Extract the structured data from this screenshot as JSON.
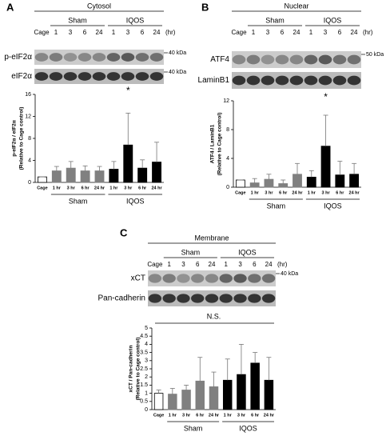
{
  "chart_data": [
    {
      "type": "bar",
      "panel": "A",
      "title": "Cytosol",
      "groups": [
        "Sham",
        "IQOS"
      ],
      "lanes": [
        "Cage",
        "1",
        "3",
        "6",
        "24",
        "1",
        "3",
        "6",
        "24"
      ],
      "lane_unit": "(hr)",
      "blot_rows": [
        {
          "label": "p-eIF2α",
          "marker": "40 kDa"
        },
        {
          "label": "eIF2α",
          "marker": "40 kDa"
        }
      ],
      "ylabel": [
        "p-eIF2α / eIF2α",
        "(Relative to Cage control)"
      ],
      "categories": [
        "Cage",
        "1 hr",
        "3 hr",
        "6 hr",
        "24 hr",
        "1 hr",
        "3 hr",
        "6 hr",
        "24 hr"
      ],
      "values": [
        1,
        2.1,
        2.6,
        2.1,
        2.1,
        2.4,
        6.8,
        2.6,
        3.7
      ],
      "errors": [
        0,
        0.8,
        1.2,
        0.9,
        0.8,
        1.4,
        5.8,
        1.5,
        3.6
      ],
      "colors": [
        "#ffffff",
        "#808080",
        "#808080",
        "#808080",
        "#808080",
        "#000000",
        "#000000",
        "#000000",
        "#000000"
      ],
      "ylim": [
        0,
        16
      ],
      "yticks": [
        0,
        4,
        8,
        12,
        16
      ],
      "annotation": "*"
    },
    {
      "type": "bar",
      "panel": "B",
      "title": "Nuclear",
      "groups": [
        "Sham",
        "IQOS"
      ],
      "lanes": [
        "Cage",
        "1",
        "3",
        "6",
        "24",
        "1",
        "3",
        "6",
        "24"
      ],
      "lane_unit": "(hr)",
      "blot_rows": [
        {
          "label": "ATF4",
          "marker": "50 kDa"
        },
        {
          "label": "LaminB1"
        }
      ],
      "ylabel": [
        "ATF4 / LaminB1",
        "(Relative to Cage control)"
      ],
      "categories": [
        "Cage",
        "1 hr",
        "3 hr",
        "6 hr",
        "24 hr",
        "1 hr",
        "3 hr",
        "6 hr",
        "24 hr"
      ],
      "values": [
        1,
        0.6,
        1.1,
        0.5,
        1.8,
        1.4,
        5.7,
        1.7,
        1.8
      ],
      "errors": [
        0,
        0.6,
        0.7,
        0.5,
        1.5,
        0.9,
        4.3,
        1.9,
        1.5
      ],
      "colors": [
        "#ffffff",
        "#808080",
        "#808080",
        "#808080",
        "#808080",
        "#000000",
        "#000000",
        "#000000",
        "#000000"
      ],
      "ylim": [
        0,
        12
      ],
      "yticks": [
        0,
        4,
        8,
        12
      ],
      "annotation": "*"
    },
    {
      "type": "bar",
      "panel": "C",
      "title": "Membrane",
      "groups": [
        "Sham",
        "IQOS"
      ],
      "lanes": [
        "Cage",
        "1",
        "3",
        "6",
        "24",
        "1",
        "3",
        "6",
        "24"
      ],
      "lane_unit": "(hr)",
      "blot_rows": [
        {
          "label": "xCT",
          "marker": "40 kDa"
        },
        {
          "label": "Pan-cadherin"
        }
      ],
      "ylabel": [
        "xCT / Pan-cadherin",
        "(Relative to Cage control)"
      ],
      "categories": [
        "Cage",
        "1 hr",
        "3 hr",
        "6 hr",
        "24 hr",
        "1 hr",
        "3 hr",
        "6 hr",
        "24 hr"
      ],
      "values": [
        1.0,
        0.95,
        1.2,
        1.75,
        1.4,
        1.8,
        2.15,
        2.85,
        1.8
      ],
      "errors": [
        0.2,
        0.35,
        0.3,
        1.45,
        0.9,
        1.3,
        1.85,
        0.65,
        1.4
      ],
      "colors": [
        "#ffffff",
        "#808080",
        "#808080",
        "#808080",
        "#808080",
        "#000000",
        "#000000",
        "#000000",
        "#000000"
      ],
      "ylim": [
        0,
        5
      ],
      "yticks": [
        0,
        0.5,
        1,
        1.5,
        2,
        2.5,
        3,
        3.5,
        4,
        4.5,
        5
      ],
      "bracket_label": "N.S."
    }
  ]
}
